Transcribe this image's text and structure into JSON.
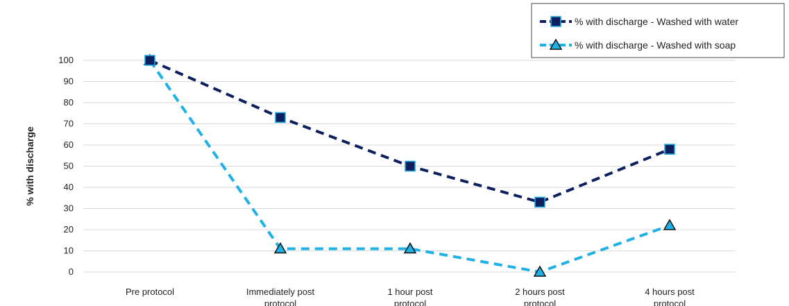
{
  "chart_data": {
    "type": "line",
    "title": "",
    "xlabel": "",
    "ylabel": "% with discharge",
    "ylim": [
      0,
      100
    ],
    "yticks": [
      0,
      10,
      20,
      30,
      40,
      50,
      60,
      70,
      80,
      90,
      100
    ],
    "grid": true,
    "legend_position": "top-right",
    "categories": [
      [
        "Pre protocol"
      ],
      [
        "Immediately post",
        "protocol"
      ],
      [
        "1 hour post",
        "protocol"
      ],
      [
        "2 hours post",
        "protocol"
      ],
      [
        "4 hours post",
        "protocol"
      ]
    ],
    "series": [
      {
        "name": "% with discharge - Washed with water",
        "values": [
          100,
          73,
          50,
          33,
          58
        ],
        "color": "#0d1f5c",
        "marker": "square",
        "marker_fill": "#0d1f5c",
        "line_style": "dashed"
      },
      {
        "name": "% with discharge - Washed with soap",
        "values": [
          100,
          11,
          11,
          0,
          22
        ],
        "color": "#1fb1e6",
        "marker": "triangle",
        "marker_fill": "#1fb1e6",
        "line_style": "dashed"
      }
    ]
  }
}
